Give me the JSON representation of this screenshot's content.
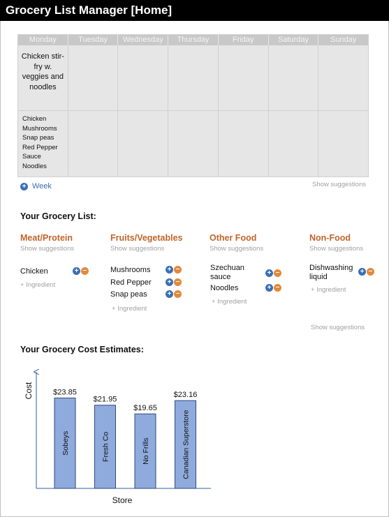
{
  "title": "Grocery List Manager [Home]",
  "planner": {
    "days": [
      "Monday",
      "Tuesday",
      "Wednesday",
      "Thursday",
      "Friday",
      "Saturday",
      "Sunday"
    ],
    "monday_meal": "Chicken stir-fry w. veggies and noodles",
    "monday_ingredients": [
      "Chicken",
      "Mushrooms",
      "Snap peas",
      "Red Pepper",
      "Sauce",
      "Noodles"
    ]
  },
  "week_label": "Week",
  "show_suggestions": "Show suggestions",
  "grocery_list_title": "Your Grocery List:",
  "add_ingredient": "+ Ingredient",
  "categories": [
    {
      "title": "Meat/Protein",
      "items": [
        "Chicken"
      ]
    },
    {
      "title": "Fruits/Vegetables",
      "items": [
        "Mushrooms",
        "Red Pepper",
        "Snap peas"
      ]
    },
    {
      "title": "Other Food",
      "items": [
        "Szechuan sauce",
        "Noodles"
      ]
    },
    {
      "title": "Non-Food",
      "items": [
        "Dishwashing liquid"
      ]
    }
  ],
  "cost_title": "Your Grocery Cost Estimates:",
  "icons": {
    "add": "plus-icon",
    "remove": "minus-icon",
    "add_color": "#3a6fb5",
    "remove_color": "#e08a3c"
  },
  "chart_data": {
    "type": "bar",
    "categories": [
      "Sobeys",
      "Fresh Co",
      "No Frills",
      "Canadian Superstore"
    ],
    "values": [
      23.85,
      21.95,
      19.65,
      23.16
    ],
    "value_labels": [
      "$23.85",
      "$21.95",
      "$19.65",
      "$23.16"
    ],
    "xlabel": "Store",
    "ylabel": "Cost",
    "ylim": [
      0,
      30
    ],
    "bar_color": "#8faadc",
    "grid": false
  }
}
